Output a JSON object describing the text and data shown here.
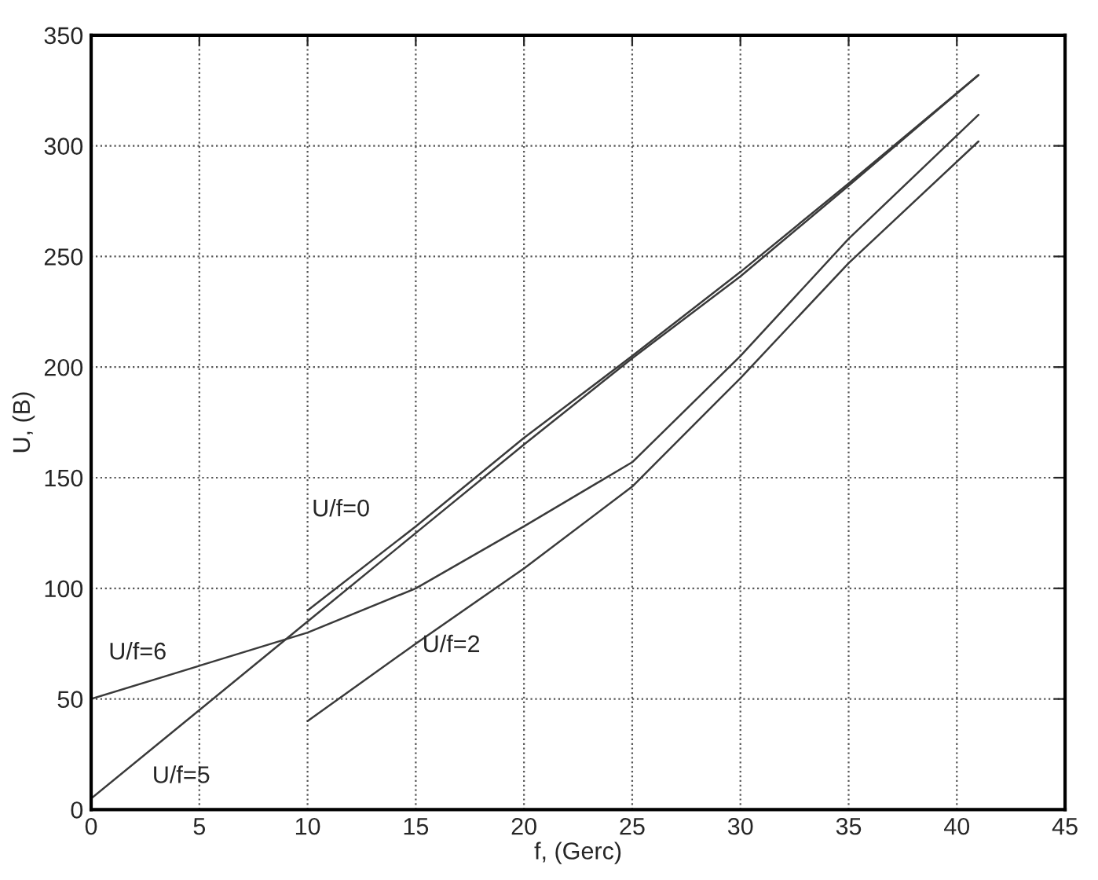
{
  "chart_data": {
    "type": "line",
    "xlabel": "f, (Gerc)",
    "ylabel": "U, (B)",
    "xlim": [
      0,
      45
    ],
    "xticks": [
      0,
      5,
      10,
      15,
      20,
      25,
      30,
      35,
      40,
      45
    ],
    "ylim": [
      0,
      350
    ],
    "yticks": [
      0,
      50,
      100,
      150,
      200,
      250,
      300,
      350
    ],
    "grid": true,
    "line_style": "solid",
    "marker": "none",
    "series": [
      {
        "name": "U/f=0",
        "color": "#3a3a3a",
        "x": [
          10,
          15,
          20,
          25,
          30,
          35,
          41
        ],
        "values": [
          90,
          128,
          168,
          205,
          243,
          283,
          332
        ]
      },
      {
        "name": "U/f=5",
        "color": "#3a3a3a",
        "x": [
          0,
          5,
          10,
          15,
          20,
          25,
          30,
          35,
          41
        ],
        "values": [
          5,
          45,
          85,
          125,
          165,
          204,
          241,
          282,
          332
        ]
      },
      {
        "name": "U/f=6",
        "color": "#3a3a3a",
        "x": [
          0,
          10,
          15,
          20,
          25,
          30,
          35,
          41
        ],
        "values": [
          50,
          80,
          100,
          128,
          157,
          205,
          258,
          314
        ]
      },
      {
        "name": "U/f=2",
        "color": "#3a3a3a",
        "x": [
          10,
          15,
          20,
          25,
          30,
          35,
          41
        ],
        "values": [
          40,
          75,
          109,
          146,
          195,
          247,
          302
        ]
      }
    ]
  }
}
